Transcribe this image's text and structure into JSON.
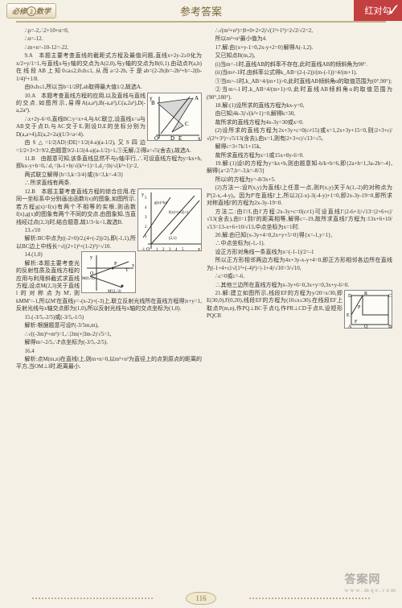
{
  "header": {
    "subject_left": "必修",
    "subject_num": "2",
    "subject_right": "数学",
    "title": "参考答案",
    "brand": "红对勾"
  },
  "page_number": "116",
  "watermark": "答案网",
  "watermark_sub": "www.mqe.com",
  "figures": {
    "fig1": {
      "type": "geometry",
      "bg": "#fdfcf6",
      "axis_color": "#333333",
      "fill": "#d8d8d8",
      "points": {
        "A": [
          58,
          5
        ],
        "B": [
          10,
          10
        ],
        "C": [
          42,
          40
        ],
        "D": [
          30,
          48
        ],
        "O": [
          22,
          48
        ]
      },
      "labels": [
        "y",
        "A",
        "B",
        "C",
        "D",
        "E",
        "O",
        "x"
      ]
    },
    "fig2": {
      "type": "plot",
      "bg": "#fdfcf6",
      "axis_color": "#333333",
      "grid_color": "#cccccc",
      "line_color": "#333333",
      "xlim": [
        -1,
        5
      ],
      "ylim": [
        0,
        5
      ],
      "ticks_x": [
        "-1",
        "O",
        "1",
        "2",
        "3",
        "4",
        "5"
      ],
      "ticks_y": [
        "1",
        "2",
        "3",
        "4",
        "5"
      ],
      "curve_label_1": "g(x)=kx",
      "curve_label_2": "f(x)=|x-2|+1",
      "point_label": "(2,1)"
    },
    "fig3": {
      "type": "geometry",
      "bg": "#fdfcf6",
      "axis_color": "#333333",
      "pts": {
        "M0": "M(0,-1)",
        "M2": "M'(2,-3)",
        "P": "P",
        "T": "T"
      },
      "labels": [
        "y",
        "O",
        "x"
      ]
    },
    "fig4": {
      "type": "rectangle",
      "bg": "#fdfcf6",
      "line_color": "#333333",
      "labels": [
        "D",
        "R",
        "C",
        "P",
        "E",
        "F",
        "A",
        "Q",
        "B"
      ]
    }
  },
  "left": [
    "∴p=-2,∴2+10+n=0,",
    "∴n=-12.",
    "∴m+n=-10-12=-22.",
    "9.A　本题主要考查直线的截距式方程及最值问题,直线x+2y-2≥0化为x/2+y/1=1,与直线x与y轴的交点为A(2,0),与y轴的交点为B(0,1).由动点P(a,b)在线段AB上知0≤a≤2,0≤b≤1,从而a=2-2b,于是ab=(2-2b)b=-2b²+b=-2(b-1/4)²+1/8.",
    "由0≤b≤1,所以当b=1/2时,ab取得最大值1/2,故选A.",
    "10.A　本题考查直线方程的应用,以及直线与直线的交点.如图所示,易得A(a,a²),B(-a,a²),C(a,2a²),D(-a,2a²).",
    "∴x+2y-6=0,直线BC:y=x+4,与AC联立,设直线x=a与AB交于点D,与AC交于E,则设D,E的坐标分别为D(a,a+4),E(a,2+2a)(1/3<a<4).",
    "由S△=1/2|AD|·|DE|=1/2(4-a)(a-1/2),又S四边=1/2×3×3=9/2,由题意9/2-1/2(4-a)(a-1/2)>1,①无解,②得a=√5(舍去),故选A.",
    "11.B　由题意可知,该条直线显然不与y轴平行,∴可设直线方程为y=kx+b,即kx-y+b=0,∴d₁=|k-1+b|/√(k²+1)=1,d₂=|b|/√(k²+1)=2,",
    "两式联立解得{b=3,k=3/4}或{b=3,k=-4/3}",
    "∴所求直线有两条.",
    "12.B　本题主要考查直线方程的综合应用,在同一坐标系中分别画出函数f(x)的图象,如图所示.若方程g(x)=f(x)有两个不相等的实根,则函数f(x),g(x)的图象有两个不同的交点.由图象知,当直线经过点(2,3)时,结合题意,故1/3<k<1,故选B.",
    "13.√10",
    "解析:BC中点为((-2+0)/2,(4+(-2))/2),即(-1,1),所以BC边上中线长=√((2+1)²+(1-2)²)=√10.",
    "14.(1,0)",
    "解析:本题主要考查光的反射性质及直线方程的应用与利用斜截式求直线方程,设点M(2,3)关于直线l的对称点为M',则kMM'=-1,所以M'在直线y=-(x-2)+(-3)上,联立反射光线所在直线方程得|x+y=1,反射光线与x轴交点即为(1,0),所以反射光线与x轴的交点坐标为(1,0).",
    "15.(-3/5,-2/5)或(-3/5,-1/5)",
    "解析:根据题意可设P(-3/5m,m),",
    "∴√((-3m)²+m²)=1,∴|3m|+|3m-2|/√5=1,",
    "解得m=-2/5,∴P点坐标为(-3/5,-2/5).",
    "16.4",
    "解析:点M(m,n)在直线l上,则m+n=0,以m²+n²为直径上的点到原点的距离的平方,当OM⊥l时,距离最小."
  ],
  "right": [
    "∴√(m²+n²)=|0+0+2×2|/√(1²+1²)=2√2/√2=2,",
    "所以m²+n²最小值为4.",
    "17.解:由{x+y-1=0,2x-y+2=0}解得A(-1,2).",
    "又已知点B(m,2),",
    "(i)当m=-1时,直线AB的斜率不存在,此时直线AB的倾斜角为90°.",
    "(ii)当m≠-1时,由斜率公式得k_AB=(2-(-2))/(m-(-1))=4/(m+1).",
    "①当m>-1时,k_AB=4/(m+1)>0,此时直线AB倾斜角α的取值范围为(0°,90°);",
    "②当m<-1时,k_AB=4/(m+1)<0,此时直线AB倾斜角α的取值范围为(90°,180°).",
    "18.解:(1)设所求的直线方程为kx-y=0,",
    "由已知|4k-3|/√(k²+1)=0,解得k=30,",
    "故所求的直线方程为4x-3y=30或x=0.",
    "(2)设所求的直线方程为2x+3y+c=0(c≠15)或x=1,2x+3y+15=0,则|2+3+c|/√(2²+3²)=√5/13(含去),由x=1,则有|2+3+c|/√13=√5,",
    "解得c=3+7k/1+15k,",
    "故所求直线方程为x=1或15x+8y-6=0.",
    "19.解:(1)设l的方程为y=kx+b,则由题意知-b/k+b=6,即{2a+b=1,3a-2b=-4},解得{a=2/7,b=-3,k=-8/3}",
    "所以l的方程为y=-8/3x+5.",
    "(2)方法一:设P(x,y)为直线l上任意一点,则P(x,y)关于A(1,-2)的对称点为P'(2-x,-4-y)。因为P'在直线l'上,所以2(2-x)-3(-4-y)+1=0,即2x-3y-19=0,即所求对称直线l'的方程为2x-3y-19=0.",
    "方法二:由l'//l,由l'方程:2x-3y+c=0(c≠1)可设直线l':|2-6+1|/√13=|2+6+c|/√13(含去),由l=1到l'的距离相等,解得c=-19,故所求直线l'方程为:13x+6+10/√13=13-x+6+10/√13,中点坐标为x=1时.",
    "20.解:由已知{x-3y+4=0,2x+y+5=0}得{x=-1,y=1},",
    "∴中点坐标为(-1,-1).",
    "设正方形对角线一条直线为x=(-1-1)/2=-1",
    "所以正方形相邻两边方程为4x+3y-x-y+4=0,即正方形相邻各边所在直线为|-1+4+c|/√(1²+(-4)²)=|-1+4|/√10=3/√10,",
    "∴c=0或c=-6.",
    "∴其他三边所在直线方程为x-3y+6=0,3x+y=0,3x+y-6=0.",
    "21.解:建立如图所示,线段EF的方程为y/20=x/30,即E(30,0),F(0,20),线段EF的方程为(10≤x≤30).在线段EF上取点P(m,n),作PQ⊥BC于点Q,作PR⊥CD于点R,设短形PQCR"
  ]
}
